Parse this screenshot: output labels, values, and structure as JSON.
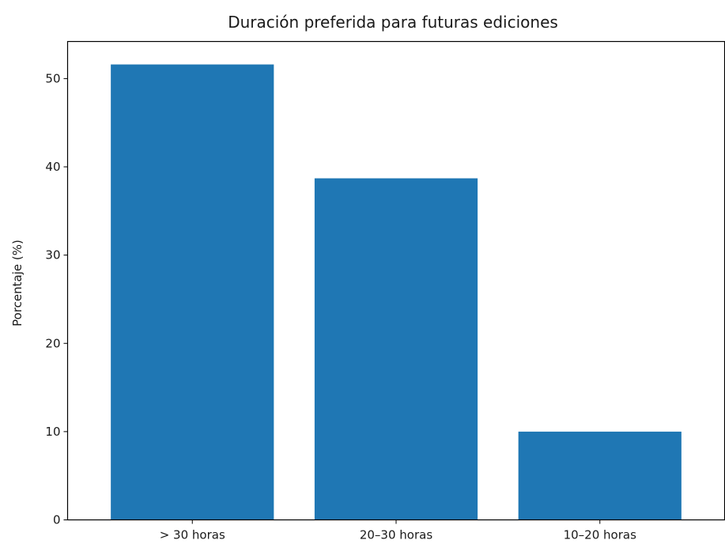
{
  "chart_data": {
    "type": "bar",
    "title": "Duración preferida para futuras ediciones",
    "xlabel": "",
    "ylabel": "Porcentaje (%)",
    "categories": [
      "> 30 horas",
      "20–30 horas",
      "10–20 horas"
    ],
    "values": [
      51.6,
      38.7,
      10.0
    ],
    "ylim": [
      0,
      54.2
    ],
    "yticks": [
      0,
      10,
      20,
      30,
      40,
      50
    ],
    "bar_color": "#1f77b4",
    "grid": false,
    "legend": "none"
  }
}
